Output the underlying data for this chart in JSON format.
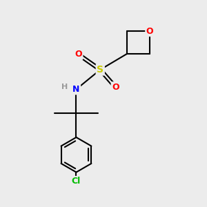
{
  "background_color": "#ececec",
  "bond_color": "#000000",
  "bond_width": 1.5,
  "atom_colors": {
    "S": "#cccc00",
    "O": "#ff0000",
    "N": "#0000ff",
    "Cl": "#00bb00",
    "H": "#999999",
    "C": "#000000"
  },
  "figsize": [
    3.0,
    3.0
  ],
  "dpi": 100,
  "xlim": [
    0.5,
    9.5
  ],
  "ylim": [
    0.3,
    9.7
  ]
}
